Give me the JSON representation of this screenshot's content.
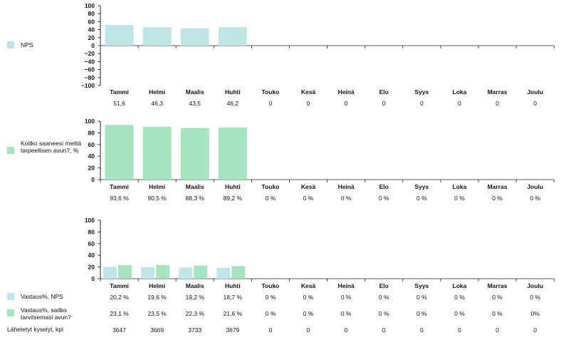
{
  "months": [
    "Tammi",
    "Helmi",
    "Maalis",
    "Huhti",
    "Touko",
    "Kesä",
    "Heinä",
    "Elo",
    "Syys",
    "Loka",
    "Marras",
    "Joulu"
  ],
  "colors": {
    "nps": "#bfe6e6",
    "help": "#a6e3bf",
    "axis": "#222222",
    "gridline": "#cccccc"
  },
  "chart_data": [
    {
      "type": "bar",
      "title": "",
      "legend": "NPS",
      "categories": [
        "Tammi",
        "Helmi",
        "Maalis",
        "Huhti",
        "Touko",
        "Kesä",
        "Heinä",
        "Elo",
        "Syys",
        "Loka",
        "Marras",
        "Joulu"
      ],
      "ylim": [
        -100,
        100
      ],
      "yticks": [
        "100",
        "80",
        "60",
        "40",
        "20",
        "0",
        "−20",
        "−40",
        "−60",
        "−80",
        "−100"
      ],
      "series": [
        {
          "name": "NPS",
          "color": "#bfe6e6",
          "values": [
            51.6,
            46.3,
            43.5,
            46.2,
            0,
            0,
            0,
            0,
            0,
            0,
            0,
            0
          ],
          "labels": [
            "51,6",
            "46,3",
            "43,5",
            "46,2",
            "0",
            "0",
            "0",
            "0",
            "0",
            "0",
            "0",
            "0"
          ]
        }
      ]
    },
    {
      "type": "bar",
      "title": "",
      "legend": "Koitko saaneesi meiltä tarpeellisen avun?, %",
      "categories": [
        "Tammi",
        "Helmi",
        "Maalis",
        "Huhti",
        "Touko",
        "Kesä",
        "Heinä",
        "Elo",
        "Syys",
        "Loka",
        "Marras",
        "Joulu"
      ],
      "ylim": [
        0,
        100
      ],
      "yticks": [
        "100",
        "80",
        "60",
        "40",
        "20",
        "0"
      ],
      "series": [
        {
          "name": "Koitko saaneesi meiltä tarpeellisen avun?, %",
          "color": "#a6e3bf",
          "values": [
            93.6,
            90.5,
            88.3,
            89.2,
            0,
            0,
            0,
            0,
            0,
            0,
            0,
            0
          ],
          "labels": [
            "93,6 %",
            "90,5 %",
            "88,3 %",
            "89,2 %",
            "0 %",
            "0 %",
            "0 %",
            "0 %",
            "0 %",
            "0 %",
            "0 %",
            "0 %"
          ]
        }
      ]
    },
    {
      "type": "bar",
      "title": "",
      "categories": [
        "Tammi",
        "Helmi",
        "Maalis",
        "Huhti",
        "Touko",
        "Kesä",
        "Heinä",
        "Elo",
        "Syys",
        "Loka",
        "Marras",
        "Joulu"
      ],
      "ylim": [
        0,
        100
      ],
      "yticks": [
        "100",
        "80",
        "60",
        "40",
        "20",
        "0"
      ],
      "series": [
        {
          "name": "Vastaus%, NPS",
          "color": "#bfe6e6",
          "values": [
            20.2,
            19.6,
            19.2,
            18.7,
            0,
            0,
            0,
            0,
            0,
            0,
            0,
            0
          ],
          "labels": [
            "20,2 %",
            "19,6 %",
            "19,2 %",
            "18,7 %",
            "0 %",
            "0 %",
            "0 %",
            "0 %",
            "0 %",
            "0 %",
            "0 %",
            "0 %"
          ]
        },
        {
          "name": "Vastaus%, saitko tarvitsemasi avun?",
          "color": "#a6e3bf",
          "values": [
            23.1,
            23.5,
            22.3,
            21.6,
            0,
            0,
            0,
            0,
            0,
            0,
            0,
            0
          ],
          "labels": [
            "23,1 %",
            "23,5 %",
            "22,3 %",
            "21,6 %",
            "0 %",
            "0 %",
            "0 %",
            "0 %",
            "0 %",
            "0 %",
            "0 %",
            "0%"
          ]
        }
      ],
      "table_rows": [
        {
          "name": "Lähetetyt kyselyt, kpl",
          "labels": [
            "3647",
            "3669",
            "3733",
            "3679",
            "0",
            "0",
            "0",
            "0",
            "0",
            "0",
            "0",
            "0"
          ]
        }
      ]
    }
  ]
}
